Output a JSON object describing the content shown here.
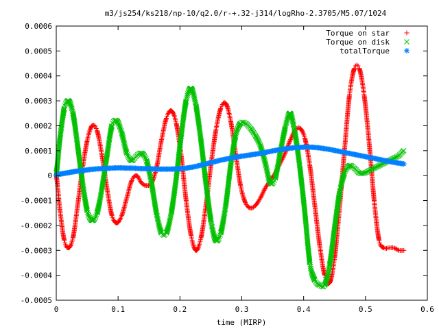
{
  "chart_data": {
    "type": "scatter",
    "title": "m3/js254/ks218/np-10/q2.0/r-+.32-j314/logRho-2.3705/M5.07/1024",
    "xlabel": "time (MIRP)",
    "ylabel": "",
    "xlim": [
      0,
      0.6
    ],
    "ylim": [
      -0.0005,
      0.0006
    ],
    "x_ticks": [
      {
        "value": 0,
        "label": "0"
      },
      {
        "value": 0.1,
        "label": "0.1"
      },
      {
        "value": 0.2,
        "label": "0.2"
      },
      {
        "value": 0.3,
        "label": "0.3"
      },
      {
        "value": 0.4,
        "label": "0.4"
      },
      {
        "value": 0.5,
        "label": "0.5"
      },
      {
        "value": 0.6,
        "label": "0.6"
      }
    ],
    "y_ticks": [
      {
        "value": -0.0005,
        "label": "-0.0005"
      },
      {
        "value": -0.0004,
        "label": "-0.0004"
      },
      {
        "value": -0.0003,
        "label": "-0.0003"
      },
      {
        "value": -0.0002,
        "label": "-0.0002"
      },
      {
        "value": -0.0001,
        "label": "-0.0001"
      },
      {
        "value": 0,
        "label": "0"
      },
      {
        "value": 0.0001,
        "label": "0.0001"
      },
      {
        "value": 0.0002,
        "label": "0.0002"
      },
      {
        "value": 0.0003,
        "label": "0.0003"
      },
      {
        "value": 0.0004,
        "label": "0.0004"
      },
      {
        "value": 0.0005,
        "label": "0.0005"
      },
      {
        "value": 0.0006,
        "label": "0.0006"
      }
    ],
    "grid": false,
    "legend_position": "top-right",
    "series": [
      {
        "name": "Torque on star",
        "color": "#ff0000",
        "marker": "plus",
        "x": [
          0,
          0.006,
          0.013,
          0.02,
          0.027,
          0.034,
          0.042,
          0.05,
          0.058,
          0.066,
          0.074,
          0.082,
          0.09,
          0.098,
          0.106,
          0.114,
          0.122,
          0.13,
          0.138,
          0.146,
          0.154,
          0.162,
          0.17,
          0.178,
          0.186,
          0.194,
          0.202,
          0.21,
          0.218,
          0.226,
          0.234,
          0.242,
          0.25,
          0.258,
          0.266,
          0.274,
          0.282,
          0.29,
          0.298,
          0.306,
          0.314,
          0.322,
          0.33,
          0.338,
          0.346,
          0.354,
          0.362,
          0.37,
          0.378,
          0.386,
          0.394,
          0.402,
          0.41,
          0.418,
          0.426,
          0.434,
          0.442,
          0.45,
          0.458,
          0.466,
          0.474,
          0.482,
          0.49,
          0.498,
          0.506,
          0.514,
          0.522,
          0.53,
          0.538,
          0.546,
          0.554,
          0.562
        ],
        "y": [
          0,
          -0.00014,
          -0.00026,
          -0.00029,
          -0.00025,
          -0.00013,
          2e-05,
          0.00014,
          0.0002,
          0.00018,
          8e-05,
          -5e-05,
          -0.00016,
          -0.00019,
          -0.00016,
          -9e-05,
          -2e-05,
          0,
          -3e-05,
          -4e-05,
          -3e-05,
          3e-05,
          0.00014,
          0.00023,
          0.00026,
          0.00021,
          8e-05,
          -0.0001,
          -0.00024,
          -0.0003,
          -0.00025,
          -0.00012,
          4e-05,
          0.00018,
          0.00027,
          0.00029,
          0.00022,
          9e-05,
          -4e-05,
          -0.00011,
          -0.00013,
          -0.00012,
          -9e-05,
          -5e-05,
          -2e-05,
          1e-05,
          5e-05,
          9e-05,
          0.00014,
          0.00018,
          0.00019,
          0.00015,
          4e-05,
          -0.00012,
          -0.00028,
          -0.0004,
          -0.00043,
          -0.00033,
          -0.00013,
          0.0001,
          0.00032,
          0.00043,
          0.00043,
          0.00032,
          0.00013,
          -0.0001,
          -0.00026,
          -0.00029,
          -0.00029,
          -0.00029,
          -0.0003,
          -0.0003
        ]
      },
      {
        "name": "Torque on disk",
        "color": "#00c000",
        "marker": "cross",
        "x": [
          0,
          0.006,
          0.013,
          0.02,
          0.027,
          0.034,
          0.042,
          0.05,
          0.058,
          0.066,
          0.074,
          0.082,
          0.09,
          0.098,
          0.106,
          0.114,
          0.122,
          0.13,
          0.138,
          0.146,
          0.154,
          0.162,
          0.17,
          0.178,
          0.186,
          0.194,
          0.202,
          0.21,
          0.218,
          0.226,
          0.234,
          0.242,
          0.25,
          0.258,
          0.266,
          0.274,
          0.282,
          0.29,
          0.298,
          0.306,
          0.314,
          0.322,
          0.33,
          0.338,
          0.346,
          0.354,
          0.362,
          0.37,
          0.378,
          0.386,
          0.394,
          0.402,
          0.41,
          0.418,
          0.426,
          0.434,
          0.442,
          0.45,
          0.458,
          0.466,
          0.474,
          0.482,
          0.49,
          0.498,
          0.506,
          0.514,
          0.522,
          0.53,
          0.538,
          0.546,
          0.554,
          0.562
        ],
        "y": [
          1e-05,
          0.00015,
          0.00027,
          0.0003,
          0.00025,
          0.00013,
          -2e-05,
          -0.00014,
          -0.00018,
          -0.00015,
          -5e-05,
          8e-05,
          0.0002,
          0.00022,
          0.00017,
          9e-05,
          6e-05,
          8e-05,
          9e-05,
          6e-05,
          -3e-05,
          -0.00015,
          -0.00023,
          -0.00023,
          -0.00015,
          -1e-05,
          0.00016,
          0.0003,
          0.00035,
          0.00028,
          0.00014,
          -3e-05,
          -0.00018,
          -0.00026,
          -0.00023,
          -0.00012,
          4e-05,
          0.00016,
          0.00021,
          0.00021,
          0.00019,
          0.00016,
          0.00012,
          5e-05,
          -3e-05,
          -1e-05,
          9e-05,
          0.00019,
          0.00025,
          0.00017,
          3e-05,
          -0.00015,
          -0.00035,
          -0.00042,
          -0.00044,
          -0.00044,
          -0.00036,
          -0.00021,
          -7e-05,
          1e-05,
          4e-05,
          3e-05,
          1e-05,
          1e-05,
          2e-05,
          3e-05,
          4e-05,
          5e-05,
          6e-05,
          7e-05,
          8e-05,
          0.0001
        ]
      },
      {
        "name": "totalTorque",
        "color": "#0080ff",
        "marker": "star",
        "x": [
          0,
          0.006,
          0.013,
          0.02,
          0.027,
          0.034,
          0.042,
          0.05,
          0.058,
          0.066,
          0.074,
          0.082,
          0.09,
          0.098,
          0.106,
          0.114,
          0.122,
          0.13,
          0.138,
          0.146,
          0.154,
          0.162,
          0.17,
          0.178,
          0.186,
          0.194,
          0.202,
          0.21,
          0.218,
          0.226,
          0.234,
          0.242,
          0.25,
          0.258,
          0.266,
          0.274,
          0.282,
          0.29,
          0.298,
          0.306,
          0.314,
          0.322,
          0.33,
          0.338,
          0.346,
          0.354,
          0.362,
          0.37,
          0.378,
          0.386,
          0.394,
          0.402,
          0.41,
          0.418,
          0.426,
          0.434,
          0.442,
          0.45,
          0.458,
          0.466,
          0.474,
          0.482,
          0.49,
          0.498,
          0.506,
          0.514,
          0.522,
          0.53,
          0.538,
          0.546,
          0.554,
          0.562
        ],
        "y": [
          3e-06,
          6e-06,
          9e-06,
          1.2e-05,
          1.5e-05,
          1.8e-05,
          2e-05,
          2.3e-05,
          2.5e-05,
          2.7e-05,
          2.8e-05,
          2.9e-05,
          3e-05,
          3.1e-05,
          3.1e-05,
          3e-05,
          3e-05,
          2.9e-05,
          2.8e-05,
          2.8e-05,
          2.7e-05,
          2.6e-05,
          2.6e-05,
          2.6e-05,
          2.6e-05,
          2.7e-05,
          2.8e-05,
          3e-05,
          3.3e-05,
          3.7e-05,
          4.2e-05,
          4.7e-05,
          5.2e-05,
          5.7e-05,
          6.2e-05,
          6.6e-05,
          7e-05,
          7.4e-05,
          7.7e-05,
          8e-05,
          8.3e-05,
          8.6e-05,
          8.9e-05,
          9.3e-05,
          9.7e-05,
          0.000101,
          0.000104,
          0.000107,
          0.00011,
          0.000112,
          0.000113,
          0.000114,
          0.000114,
          0.000113,
          0.000111,
          0.000108,
          0.000105,
          0.000101,
          9.7e-05,
          9.3e-05,
          8.9e-05,
          8.5e-05,
          8.1e-05,
          7.7e-05,
          7.3e-05,
          6.9e-05,
          6.5e-05,
          6.1e-05,
          5.7e-05,
          5.3e-05,
          5e-05,
          4.7e-05
        ]
      }
    ]
  }
}
